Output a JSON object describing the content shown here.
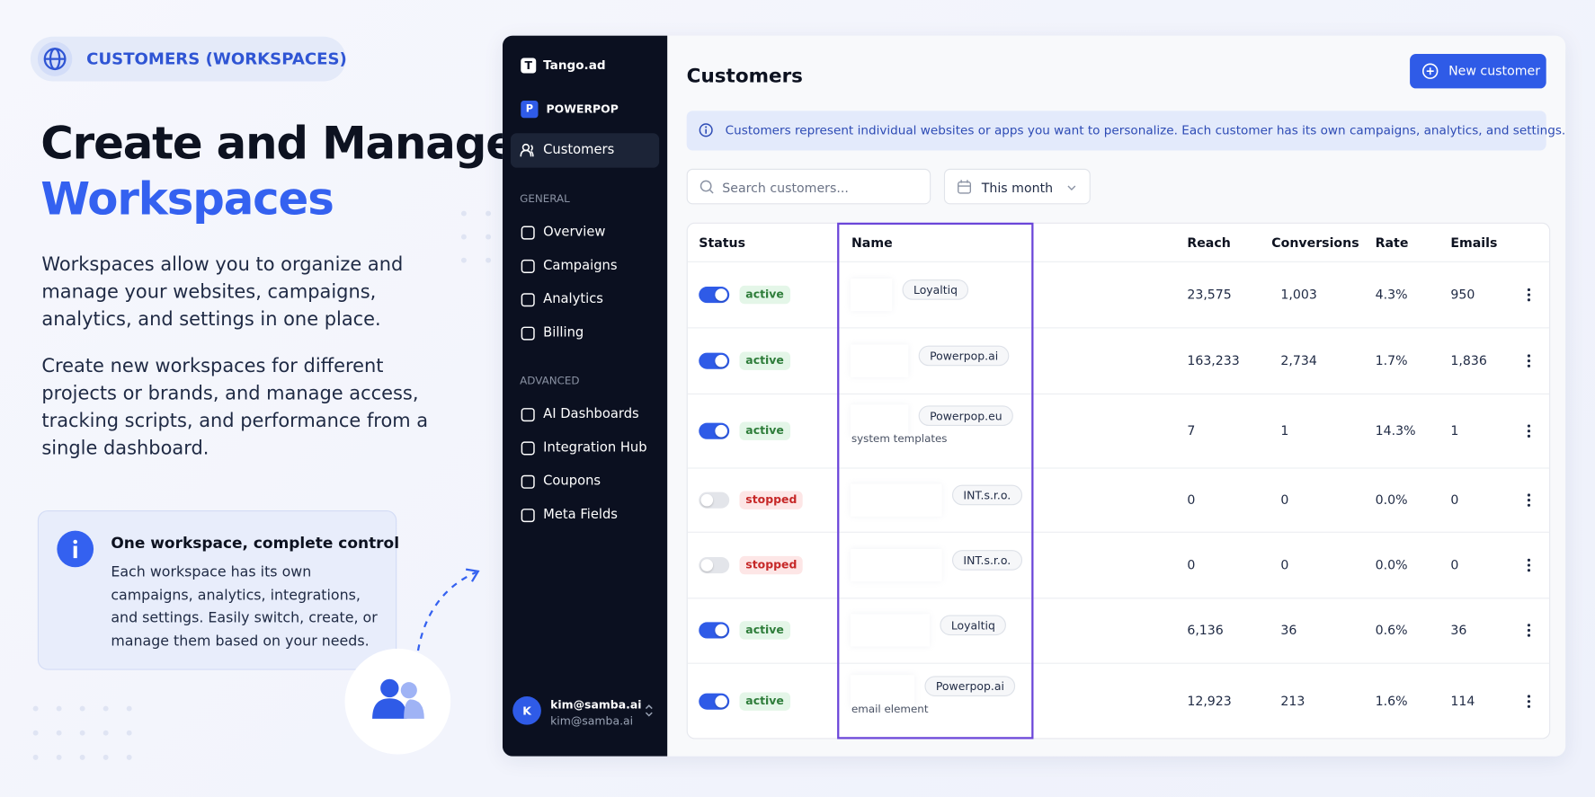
{
  "badge": "CUSTOMERS (WORKSPACES)",
  "hero": {
    "title_line1": "Create and Manage",
    "title_line2": "Workspaces",
    "paragraphs": [
      "Workspaces allow you to organize and manage your websites, campaigns, analytics, and settings in one place.",
      "Create new workspaces for different projects or brands, and manage access, tracking scripts, and performance from a single dashboard."
    ]
  },
  "callout": {
    "title": "One workspace, complete control",
    "text": "Each workspace has its own campaigns, analytics, integrations, and settings. Easily switch, create, or manage them based on your needs."
  },
  "sidebar": {
    "brand_initial": "T",
    "brand": "Tango.ad",
    "workspace_initial": "P",
    "workspace": "POWERPOP",
    "active_item": "Customers",
    "sections": [
      {
        "title": "GENERAL",
        "items": [
          "Overview",
          "Campaigns",
          "Analytics",
          "Billing"
        ]
      },
      {
        "title": "ADVANCED",
        "items": [
          "AI Dashboards",
          "Integration Hub",
          "Coupons",
          "Meta Fields"
        ]
      }
    ],
    "user": {
      "initial": "K",
      "name": "kim@samba.ai",
      "email": "kim@samba.ai"
    }
  },
  "main": {
    "title": "Customers",
    "new_button": "New customer",
    "info": "Customers represent individual websites or apps you want to personalize. Each customer has its own campaigns, analytics, and settings.",
    "search_placeholder": "Search customers...",
    "date_filter": "This month",
    "table": {
      "columns": [
        "Status",
        "Name",
        "Reach",
        "Conversions",
        "Rate",
        "Emails"
      ],
      "rows": [
        {
          "enabled": true,
          "status": "active",
          "tag": "Loyaltiq",
          "reach": "23,575",
          "conversions": "1,003",
          "rate": "4.3%",
          "emails": "950"
        },
        {
          "enabled": true,
          "status": "active",
          "tag": "Powerpop.ai",
          "reach": "163,233",
          "conversions": "2,734",
          "rate": "1.7%",
          "emails": "1,836"
        },
        {
          "enabled": true,
          "status": "active",
          "tag": "Powerpop.eu",
          "note": "system templates",
          "reach": "7",
          "conversions": "1",
          "rate": "14.3%",
          "emails": "1"
        },
        {
          "enabled": false,
          "status": "stopped",
          "tag": "INT.s.r.o.",
          "reach": "0",
          "conversions": "0",
          "rate": "0.0%",
          "emails": "0"
        },
        {
          "enabled": false,
          "status": "stopped",
          "tag": "INT.s.r.o.",
          "reach": "0",
          "conversions": "0",
          "rate": "0.0%",
          "emails": "0"
        },
        {
          "enabled": true,
          "status": "active",
          "tag": "Loyaltiq",
          "reach": "6,136",
          "conversions": "36",
          "rate": "0.6%",
          "emails": "36"
        },
        {
          "enabled": true,
          "status": "active",
          "tag": "Powerpop.ai",
          "note": "email element",
          "reach": "12,923",
          "conversions": "213",
          "rate": "1.6%",
          "emails": "114"
        }
      ]
    }
  }
}
